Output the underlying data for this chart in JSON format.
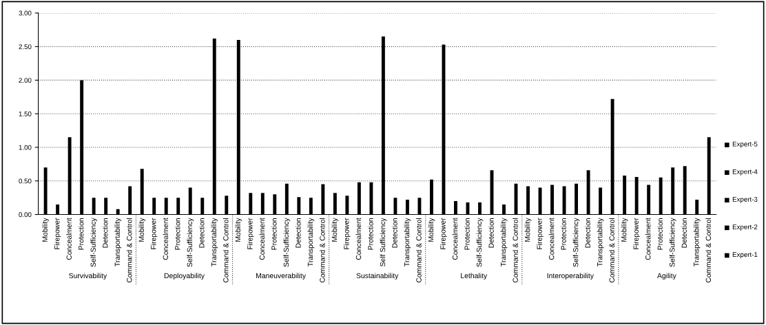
{
  "chart_data": {
    "type": "bar",
    "categories": [
      "Mobility",
      "Firepower",
      "Concealment",
      "Protection",
      "Self-Sufficiency",
      "Detection",
      "Transportability",
      "Command & Control",
      "Mobility",
      "Firepower",
      "Concealment",
      "Protection",
      "Self-Sufficiency",
      "Detection",
      "Transportability",
      "Command & Control",
      "Mobility",
      "Firepower",
      "Concealment",
      "Protection",
      "Self-Sufficiency",
      "Detection",
      "Transportability",
      "Command & Control",
      "Mobility",
      "Firepower",
      "Concealment",
      "Protection",
      "Self Sufficiency",
      "Detection",
      "Transportability",
      "Command & Control",
      "Mobility",
      "Firepower",
      "Concealment",
      "Protection",
      "Self-Sufficiency",
      "Detection",
      "Transportability",
      "Command & Control",
      "Mobility",
      "Firepower",
      "Concealment",
      "Protection",
      "Self-Sufficiency",
      "Detection",
      "Transportability",
      "Command & Control",
      "Mobility",
      "Firepower",
      "Concealment",
      "Protection",
      "Self-Sufficiency",
      "Detection",
      "Transportability",
      "Command & Control"
    ],
    "series": [
      {
        "color": "#000000",
        "values": [
          0.7,
          0.15,
          1.15,
          2.0,
          0.25,
          0.25,
          0.08,
          0.42,
          0.68,
          0.25,
          0.25,
          0.25,
          0.4,
          0.25,
          2.62,
          0.28,
          2.6,
          0.32,
          0.32,
          0.3,
          0.46,
          0.26,
          0.25,
          0.45,
          0.32,
          0.28,
          0.48,
          0.48,
          2.65,
          0.25,
          0.22,
          0.25,
          0.52,
          2.53,
          0.2,
          0.18,
          0.18,
          0.66,
          0.15,
          0.46,
          0.42,
          0.4,
          0.44,
          0.42,
          0.46,
          0.66,
          0.4,
          1.72,
          0.58,
          0.56,
          0.44,
          0.55,
          0.7,
          0.72,
          0.22,
          1.15
        ]
      }
    ],
    "ylim": [
      0,
      3
    ],
    "yticks": [
      {
        "value": 0,
        "label": "0.00"
      },
      {
        "value": 0.5,
        "label": "0.50"
      },
      {
        "value": 1,
        "label": "1.00"
      },
      {
        "value": 1.5,
        "label": "1.50"
      },
      {
        "value": 2,
        "label": "2.00"
      },
      {
        "value": 2.5,
        "label": "2.50"
      },
      {
        "value": 3,
        "label": "3.00"
      }
    ],
    "grid": "y",
    "annotations": [
      "Survivability",
      "Deployability",
      "Maneuverability",
      "Sustainability",
      "Lethality",
      "Interoperability",
      "Agility",
      "Expert-5",
      "Expert-4",
      "Expert-3",
      "Expert-2",
      "Expert-1"
    ]
  }
}
